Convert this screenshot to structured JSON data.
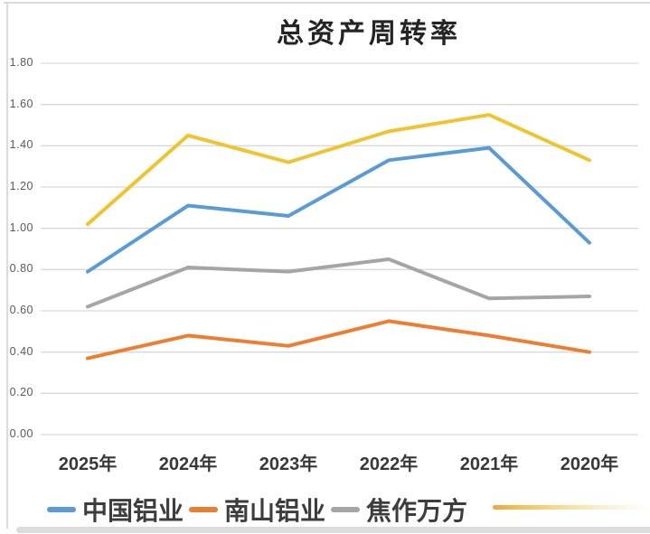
{
  "title": "总资产周转率",
  "chart_data": {
    "type": "line",
    "categories": [
      "2025年",
      "2024年",
      "2023年",
      "2022年",
      "2021年",
      "2020年"
    ],
    "series": [
      {
        "name": "中国铝业",
        "color": "#5B9BD5",
        "values": [
          0.79,
          1.11,
          1.06,
          1.33,
          1.39,
          0.93
        ]
      },
      {
        "name": "南山铝业",
        "color": "#ED7D31",
        "values": [
          0.37,
          0.48,
          0.43,
          0.55,
          0.48,
          0.4
        ]
      },
      {
        "name": "焦作万方",
        "color": "#A5A5A5",
        "values": [
          0.62,
          0.81,
          0.79,
          0.85,
          0.66,
          0.67
        ]
      },
      {
        "name": "",
        "color": "#F0C330",
        "values": [
          1.02,
          1.45,
          1.32,
          1.47,
          1.55,
          1.33
        ]
      }
    ],
    "y_ticks": [
      "1.80",
      "1.60",
      "1.40",
      "1.20",
      "1.00",
      "0.80",
      "0.60",
      "0.40",
      "0.20",
      "0.00"
    ],
    "ylim": [
      0,
      1.8
    ],
    "grid": true,
    "gridline_color": "#D9D9D9",
    "legend_position": "bottom"
  },
  "legend": {
    "items": [
      {
        "label": "中国铝业",
        "color": "#5B9BD5"
      },
      {
        "label": "南山铝业",
        "color": "#ED7D31"
      },
      {
        "label": "焦作万方",
        "color": "#A5A5A5"
      }
    ],
    "overflow_marker_color": "#E8A93B"
  }
}
